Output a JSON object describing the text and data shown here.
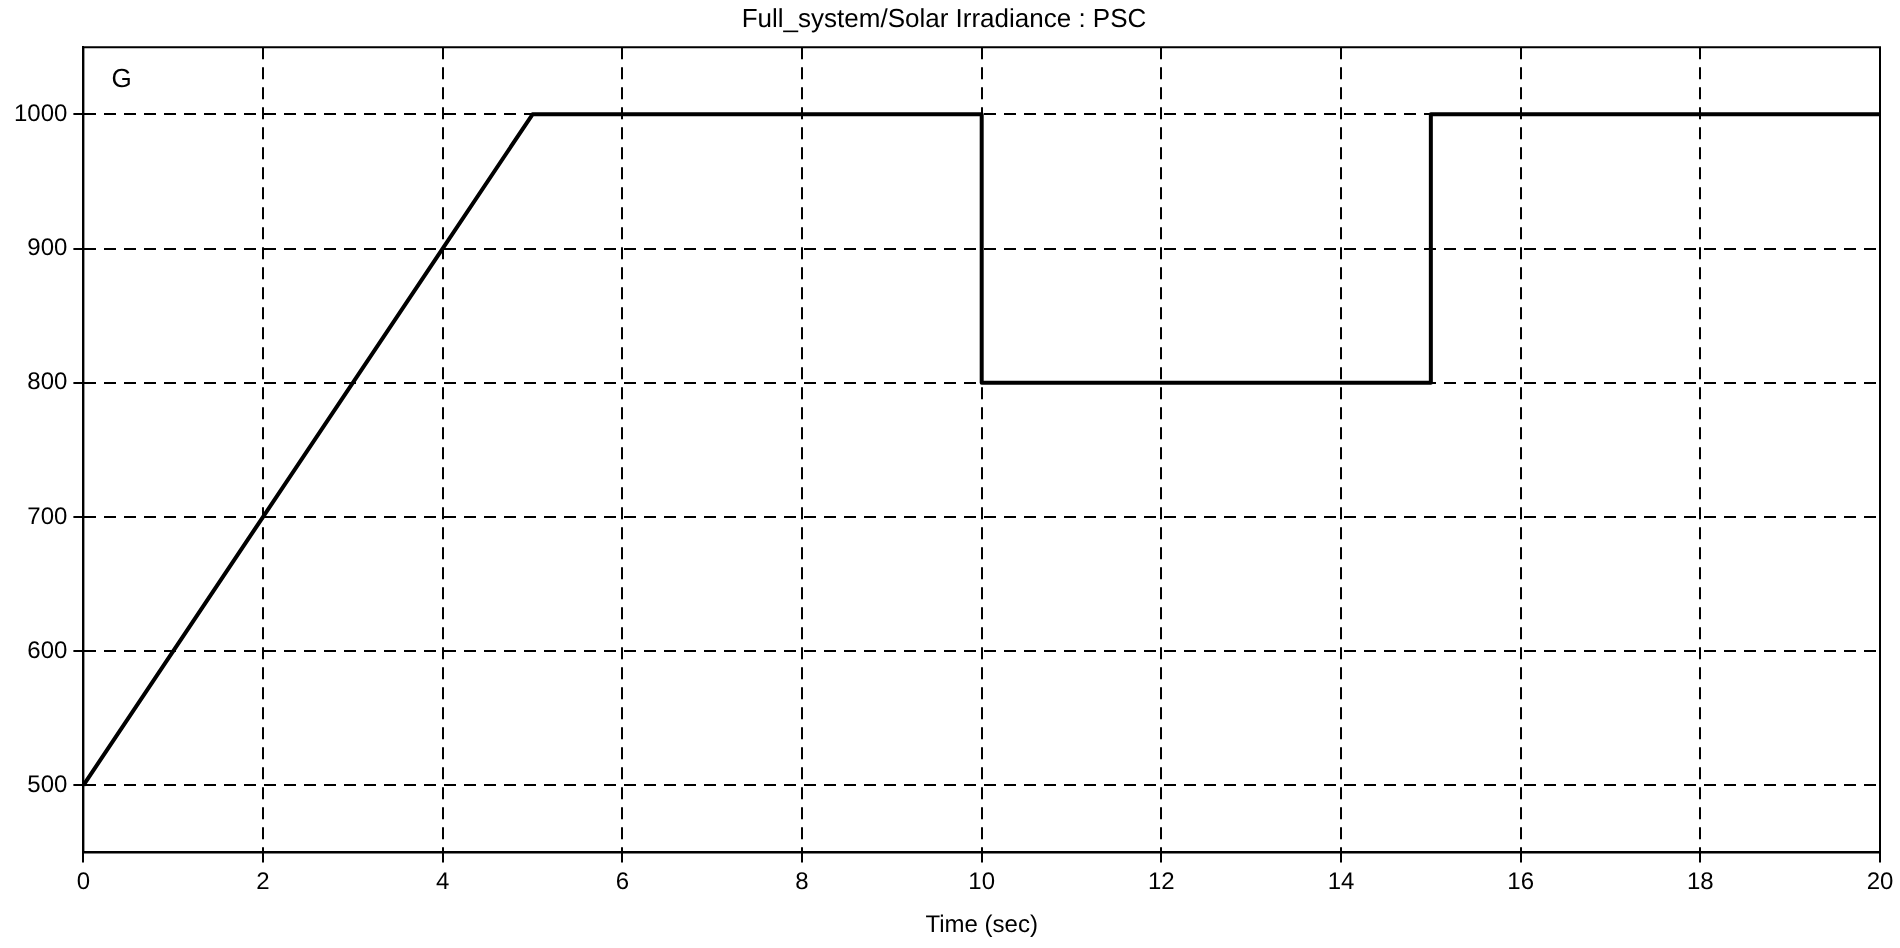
{
  "chart_data": {
    "type": "line",
    "title": "Full_system/Solar Irradiance : PSC",
    "xlabel": "Time (sec)",
    "annotations": [
      "G"
    ],
    "x": [
      0,
      5,
      10,
      10,
      15,
      15,
      20
    ],
    "series": [
      {
        "color": "#000000",
        "values": [
          500,
          1000,
          1000,
          800,
          800,
          1000,
          1000
        ]
      }
    ],
    "xlim": [
      0,
      20
    ],
    "xticks": [
      0,
      2,
      4,
      6,
      8,
      10,
      12,
      14,
      16,
      18,
      20
    ],
    "ylim": [
      450,
      1050
    ],
    "yticks": [
      500,
      600,
      700,
      800,
      900,
      1000
    ],
    "grid": true,
    "legend": false,
    "marker": "none",
    "line_style": "solid"
  }
}
